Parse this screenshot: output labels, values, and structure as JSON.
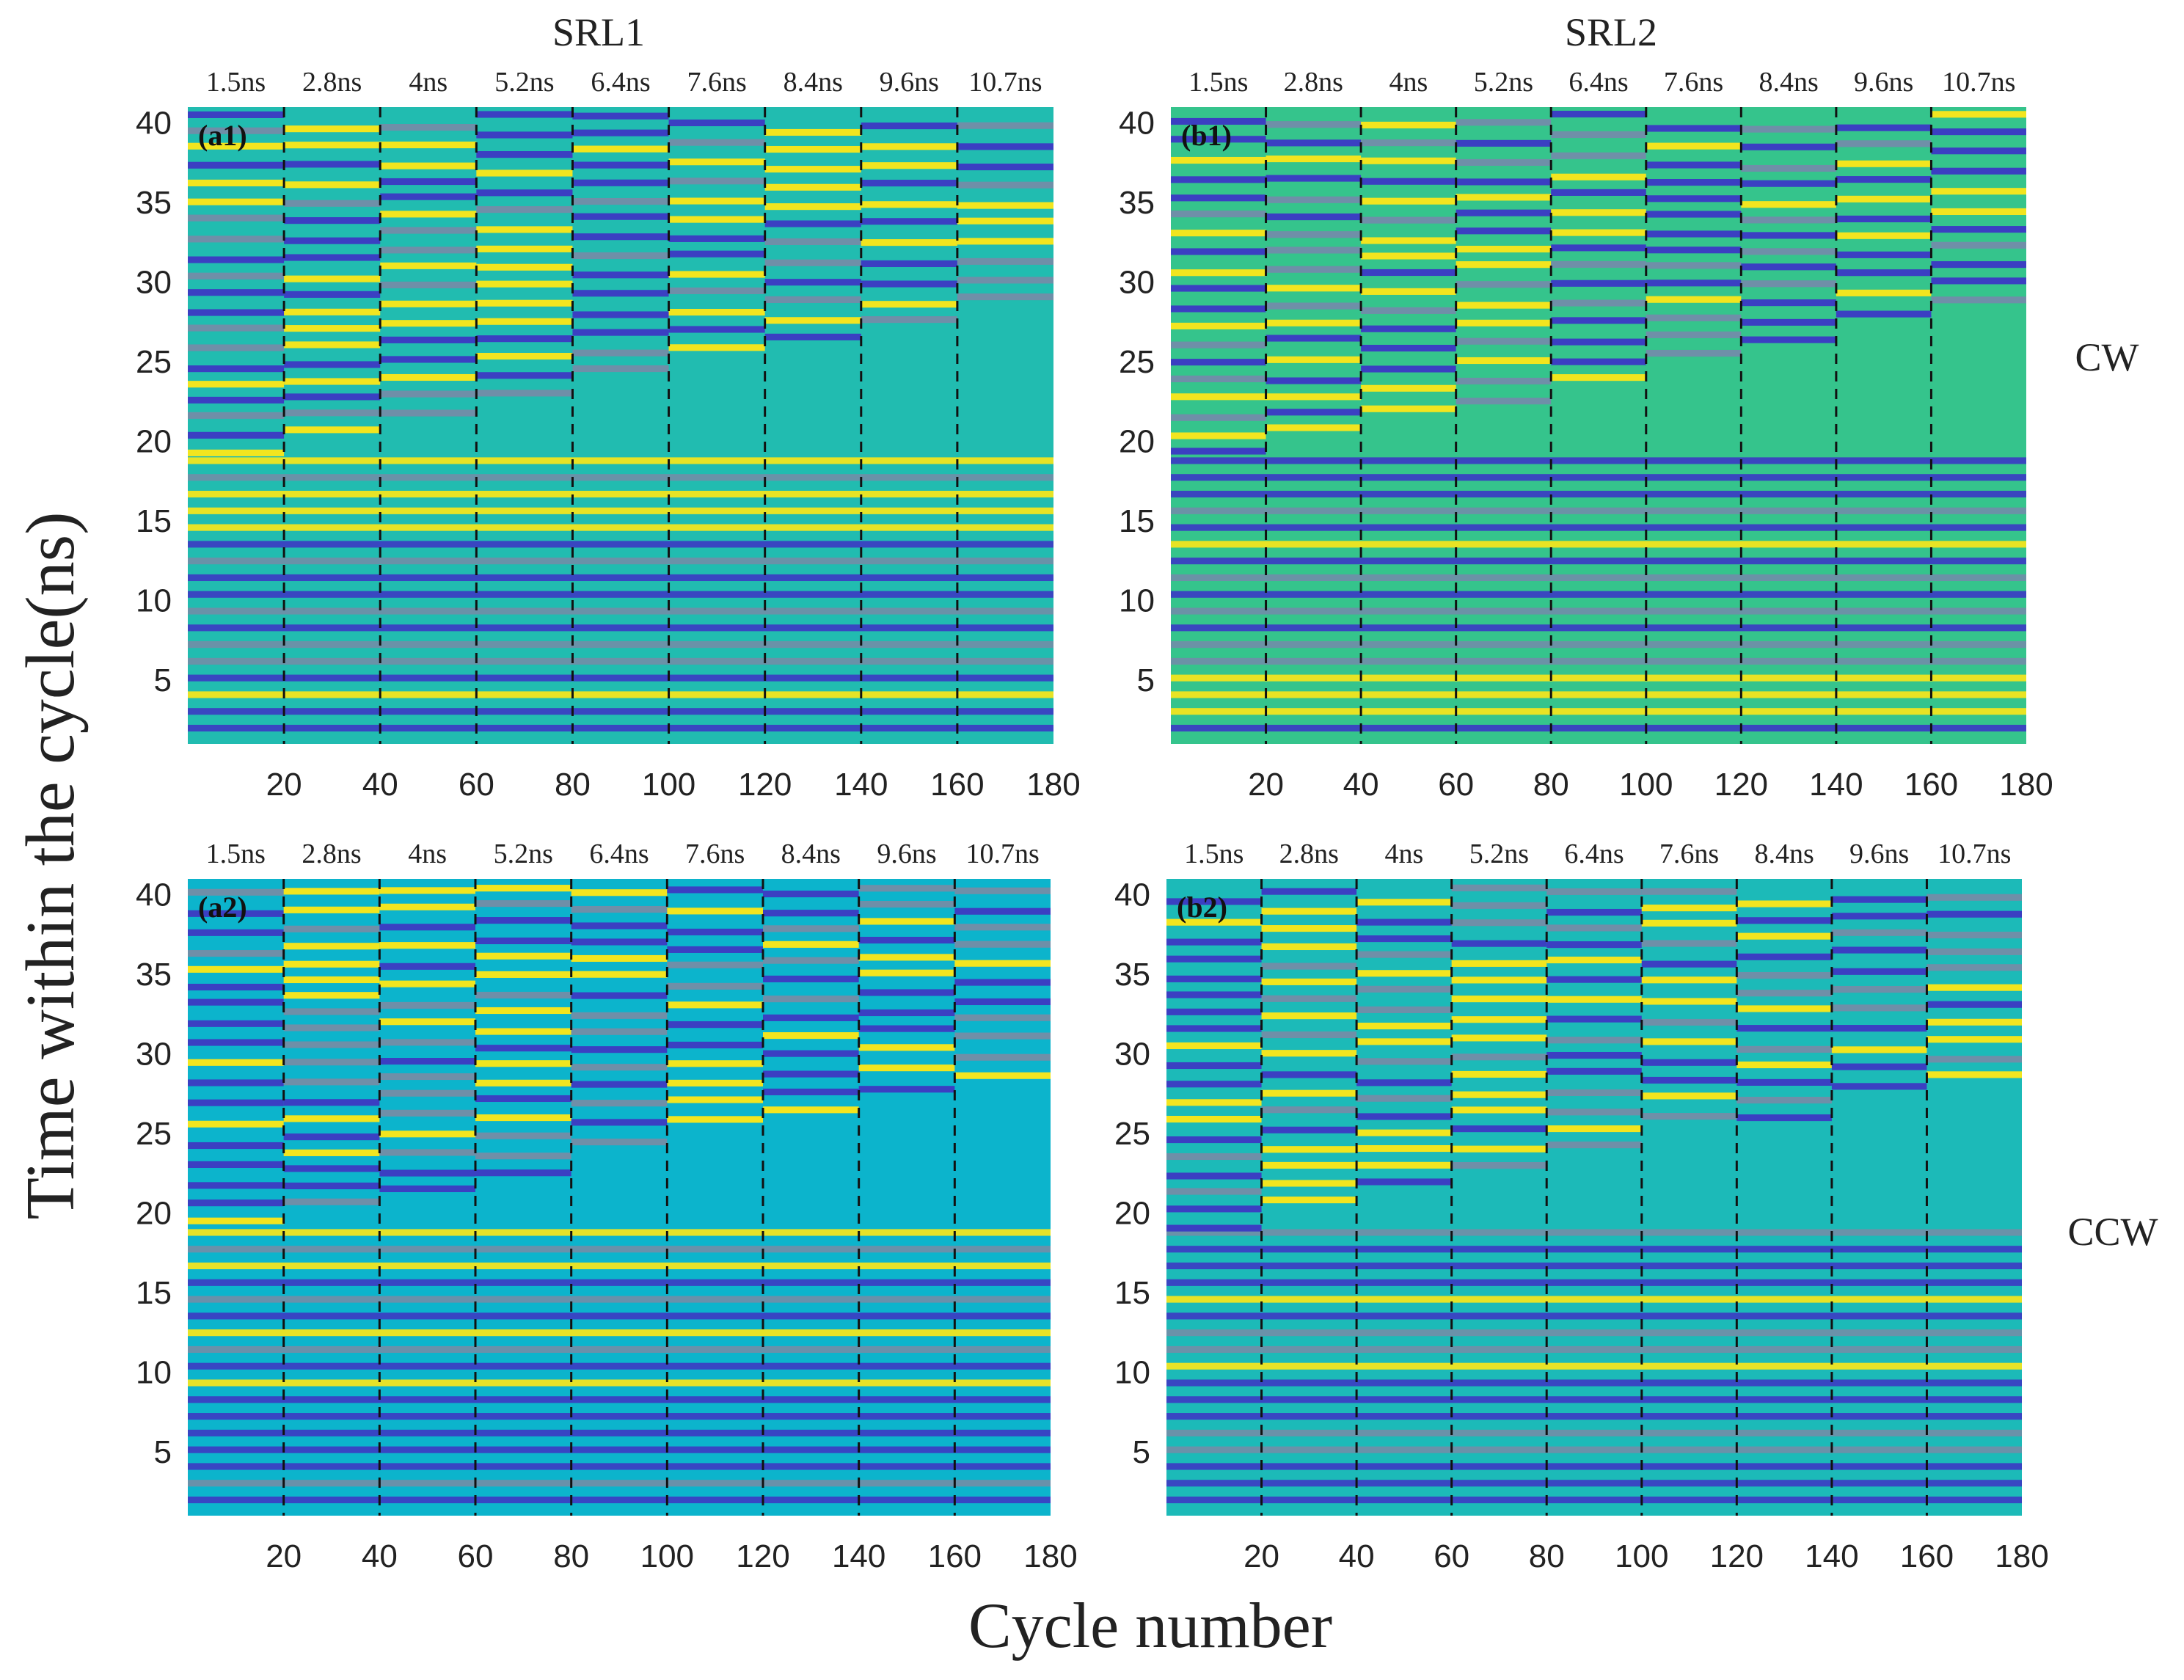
{
  "figure": {
    "ylabel": "Time within the cycle(ns)",
    "xlabel": "Cycle number",
    "columns": [
      "SRL1",
      "SRL2"
    ],
    "rows": [
      "CW",
      "CCW"
    ]
  },
  "chart_data": [
    {
      "type": "heatmap",
      "id": "a1",
      "panel_label": "(a1)",
      "column": "SRL1",
      "row": "CW",
      "xlabel": "Cycle number",
      "ylabel": "Time within the cycle(ns)",
      "xlim": [
        0,
        180
      ],
      "ylim": [
        1,
        41
      ],
      "xticks": [
        20,
        40,
        60,
        80,
        100,
        120,
        140,
        160,
        180
      ],
      "yticks": [
        5,
        10,
        15,
        20,
        25,
        30,
        35,
        40
      ],
      "segments": [
        "1.5ns",
        "2.8ns",
        "4ns",
        "5.2ns",
        "6.4ns",
        "7.6ns",
        "8.4ns",
        "9.6ns",
        "10.7ns"
      ],
      "segment_boundaries": [
        20,
        40,
        60,
        80,
        100,
        120,
        140,
        160
      ],
      "seed": 11,
      "background": "#21bcb0",
      "lower_region_top_ns": [
        19,
        20.5,
        21.5,
        22.5,
        24,
        25.5,
        26,
        27.5,
        28.5
      ]
    },
    {
      "type": "heatmap",
      "id": "b1",
      "panel_label": "(b1)",
      "column": "SRL2",
      "row": "CW",
      "xlabel": "Cycle number",
      "ylabel": "Time within the cycle(ns)",
      "xlim": [
        0,
        180
      ],
      "ylim": [
        1,
        41
      ],
      "xticks": [
        20,
        40,
        60,
        80,
        100,
        120,
        140,
        160,
        180
      ],
      "yticks": [
        5,
        10,
        15,
        20,
        25,
        30,
        35,
        40
      ],
      "segments": [
        "1.5ns",
        "2.8ns",
        "4ns",
        "5.2ns",
        "6.4ns",
        "7.6ns",
        "8.4ns",
        "9.6ns",
        "10.7ns"
      ],
      "segment_boundaries": [
        20,
        40,
        60,
        80,
        100,
        120,
        140,
        160
      ],
      "seed": 23,
      "background": "#35c48c",
      "lower_region_top_ns": [
        19,
        20.5,
        21.5,
        22.5,
        24,
        25.5,
        26,
        27.5,
        28.5
      ]
    },
    {
      "type": "heatmap",
      "id": "a2",
      "panel_label": "(a2)",
      "column": "SRL1",
      "row": "CCW",
      "xlabel": "Cycle number",
      "ylabel": "Time within the cycle(ns)",
      "xlim": [
        0,
        180
      ],
      "ylim": [
        1,
        41
      ],
      "xticks": [
        20,
        40,
        60,
        80,
        100,
        120,
        140,
        160,
        180
      ],
      "yticks": [
        5,
        10,
        15,
        20,
        25,
        30,
        35,
        40
      ],
      "segments": [
        "1.5ns",
        "2.8ns",
        "4ns",
        "5.2ns",
        "6.4ns",
        "7.6ns",
        "8.4ns",
        "9.6ns",
        "10.7ns"
      ],
      "segment_boundaries": [
        20,
        40,
        60,
        80,
        100,
        120,
        140,
        160
      ],
      "seed": 37,
      "background": "#0cb4cc",
      "lower_region_top_ns": [
        19,
        20.5,
        21.5,
        22.5,
        24,
        25.5,
        26,
        27.5,
        28.5
      ]
    },
    {
      "type": "heatmap",
      "id": "b2",
      "panel_label": "(b2)",
      "column": "SRL2",
      "row": "CCW",
      "xlabel": "Cycle number",
      "ylabel": "Time within the cycle(ns)",
      "xlim": [
        0,
        180
      ],
      "ylim": [
        1,
        41
      ],
      "xticks": [
        20,
        40,
        60,
        80,
        100,
        120,
        140,
        160,
        180
      ],
      "yticks": [
        5,
        10,
        15,
        20,
        25,
        30,
        35,
        40
      ],
      "segments": [
        "1.5ns",
        "2.8ns",
        "4ns",
        "5.2ns",
        "6.4ns",
        "7.6ns",
        "8.4ns",
        "9.6ns",
        "10.7ns"
      ],
      "segment_boundaries": [
        20,
        40,
        60,
        80,
        100,
        120,
        140,
        160
      ],
      "seed": 53,
      "background": "#1cbab8",
      "lower_region_top_ns": [
        19,
        20.5,
        21.5,
        22.5,
        24,
        25.5,
        26,
        27.5,
        28.5
      ]
    }
  ],
  "colors": {
    "low": "#3b3fc2",
    "high": "#f2e51f",
    "mid": "#6f8fa8",
    "text": "#222222",
    "boundary": "#111111"
  }
}
